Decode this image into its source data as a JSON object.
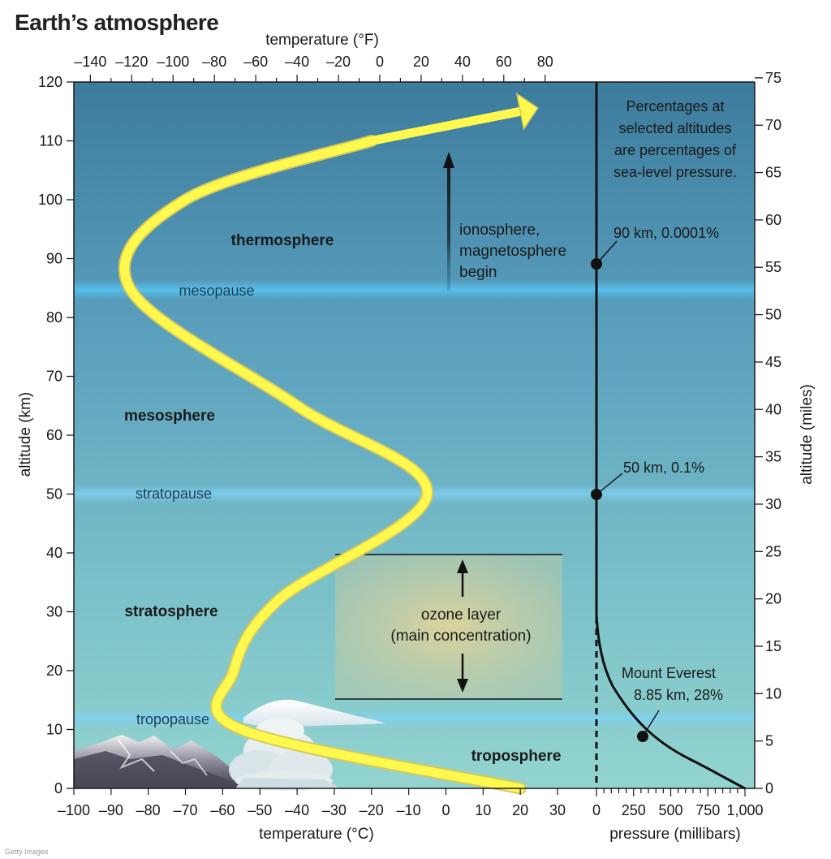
{
  "title": "Earth’s atmosphere",
  "credit": "Getty Images",
  "axes": {
    "top_label": "temperature (°F)",
    "top_ticks": [
      "–140",
      "–120",
      "–100",
      "–80",
      "–60",
      "–40",
      "–20",
      "0",
      "20",
      "40",
      "60",
      "80"
    ],
    "left_label": "altitude (km)",
    "left_ticks": [
      "0",
      "10",
      "20",
      "30",
      "40",
      "50",
      "60",
      "70",
      "80",
      "90",
      "100",
      "110",
      "120"
    ],
    "right_label": "altitude (miles)",
    "right_ticks": [
      "0",
      "5",
      "10",
      "15",
      "20",
      "25",
      "30",
      "35",
      "40",
      "45",
      "50",
      "55",
      "60",
      "65",
      "70",
      "75"
    ],
    "bottom_label": "temperature (°C)",
    "bottom_ticks": [
      "–100",
      "–90",
      "–80",
      "–70",
      "–60",
      "–50",
      "–40",
      "–30",
      "–20",
      "–10",
      "0",
      "10",
      "20",
      "30"
    ],
    "pressure_label": "pressure (millibars)",
    "pressure_ticks": [
      "0",
      "250",
      "500",
      "750",
      "1,000"
    ]
  },
  "layers": {
    "thermosphere": "thermosphere",
    "mesosphere": "mesosphere",
    "stratosphere": "stratosphere",
    "troposphere": "troposphere"
  },
  "pauses": {
    "mesopause": "mesopause",
    "stratopause": "stratopause",
    "tropopause": "tropopause"
  },
  "annotations": {
    "ionosphere": [
      "ionosphere,",
      "magnetosphere",
      "begin"
    ],
    "ozone": [
      "ozone layer",
      "(main concentration)"
    ],
    "note": [
      "Percentages at",
      "selected altitudes",
      "are percentages of",
      "sea-level pressure."
    ],
    "pt90": "90 km, 0.0001%",
    "pt50": "50 km, 0.1%",
    "everest": [
      "Mount Everest",
      "8.85 km, 28%"
    ]
  },
  "colors": {
    "sky_top": "#3f7fa0",
    "sky_bottom": "#8ed1cf",
    "temperature_curve": "#fef84f",
    "curve_outline": "#d5c95a",
    "pause_band": "#5ec3ee",
    "ozone": "#d9cf99"
  },
  "chart_data": {
    "type": "line",
    "series": [
      {
        "x_unit": "°C",
        "y_unit": "km",
        "points": [
          [
            20,
            0
          ],
          [
            -55,
            10
          ],
          [
            -57,
            20
          ],
          [
            -45,
            32
          ],
          [
            -5,
            50
          ],
          [
            -40,
            65
          ],
          [
            -85,
            85
          ],
          [
            -70,
            100
          ],
          [
            -20,
            110
          ],
          [
            20,
            115
          ]
        ]
      },
      {
        "x_unit": "mb",
        "y_unit": "km",
        "points": [
          [
            1013,
            0
          ],
          [
            314,
            8.85
          ],
          [
            1.0,
            50
          ],
          [
            0.001,
            90
          ]
        ]
      }
    ],
    "xlim_temperature_c": [
      -100,
      30
    ],
    "xlim_pressure_mb": [
      0,
      1000
    ],
    "ylim_km": [
      0,
      120
    ],
    "ylim_miles": [
      0,
      75
    ],
    "grid": false
  }
}
